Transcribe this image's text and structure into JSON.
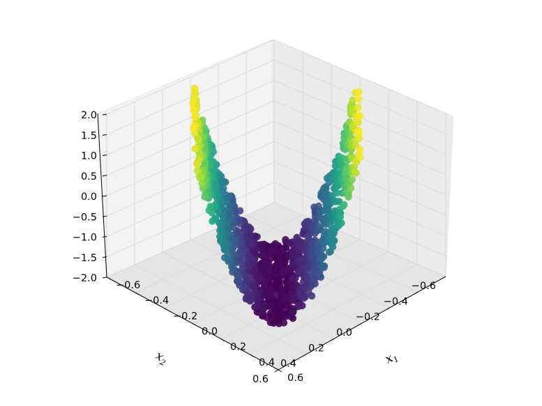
{
  "chart_data": {
    "type": "scatter",
    "projection": "3d",
    "title": "",
    "xlabel_main": "x",
    "xlabel_sub": "1",
    "ylabel_main": "x",
    "ylabel_sub": "2",
    "zlabel": "",
    "xlim": [
      -0.6,
      0.6
    ],
    "ylim": [
      -0.6,
      0.6
    ],
    "zlim": [
      -2.0,
      2.0
    ],
    "x_ticks": [
      "−0.6",
      "−0.4",
      "−0.2",
      "0.0",
      "0.2",
      "0.4",
      "0.6"
    ],
    "y_ticks": [
      "−0.6",
      "−0.4",
      "−0.2",
      "0.0",
      "0.2",
      "0.4",
      "0.6"
    ],
    "z_ticks": [
      "−2.0",
      "−1.5",
      "−1.0",
      "−0.5",
      "0.0",
      "0.5",
      "1.0",
      "1.5",
      "2.0"
    ],
    "colormap": "viridis",
    "grid": true,
    "surface": "V-shaped point cloud: z rises from about -2.0 at the bottom to about 2.0 at the two upper arms"
  }
}
